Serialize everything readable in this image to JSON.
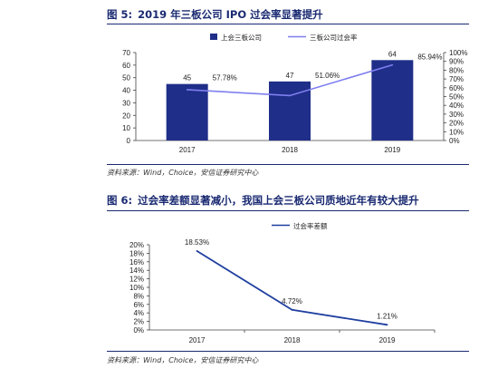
{
  "figures": [
    {
      "caption_prefix": "图 5:",
      "caption_text": "2019 年三板公司 IPO 过会率显著提升",
      "source": "资料来源：Wind，Choice，安信证券研究中心",
      "colors": {
        "bar": "#1f2e88",
        "line": "#7f7ff0"
      }
    },
    {
      "caption_prefix": "图 6:",
      "caption_text": "过会率差额显著减小，我国上会三板公司质地近年有较大提升",
      "source": "资料来源：Wind，Choice，安信证券研究中心",
      "colors": {
        "line": "#1f3fa0"
      }
    }
  ],
  "chart_data": [
    {
      "type": "bar",
      "categories": [
        "2017",
        "2018",
        "2019"
      ],
      "series": [
        {
          "name": "上会三板公司",
          "kind": "bar",
          "axis": "left",
          "values": [
            45,
            47,
            64
          ],
          "labels": [
            "45",
            "47",
            "64"
          ]
        },
        {
          "name": "三板公司过会率",
          "kind": "line",
          "axis": "right",
          "values": [
            57.78,
            51.06,
            85.94
          ],
          "labels": [
            "57.78%",
            "51.06%",
            "85.94%"
          ]
        }
      ],
      "y_left": {
        "min": 0,
        "max": 70,
        "ticks": [
          "0",
          "10",
          "20",
          "30",
          "40",
          "50",
          "60",
          "70"
        ]
      },
      "y_right": {
        "min": 0,
        "max": 100,
        "ticks": [
          "0%",
          "10%",
          "20%",
          "30%",
          "40%",
          "50%",
          "60%",
          "70%",
          "80%",
          "90%",
          "100%"
        ]
      },
      "grid": false,
      "legend": "top"
    },
    {
      "type": "line",
      "categories": [
        "2017",
        "2018",
        "2019"
      ],
      "series": [
        {
          "name": "过会率差额",
          "values": [
            18.53,
            4.72,
            1.21
          ],
          "labels": [
            "18.53%",
            "4.72%",
            "1.21%"
          ]
        }
      ],
      "y": {
        "min": 0,
        "max": 20,
        "ticks": [
          "0%",
          "2%",
          "4%",
          "6%",
          "8%",
          "10%",
          "12%",
          "14%",
          "16%",
          "18%",
          "20%"
        ]
      },
      "grid": false,
      "legend": "top"
    }
  ]
}
